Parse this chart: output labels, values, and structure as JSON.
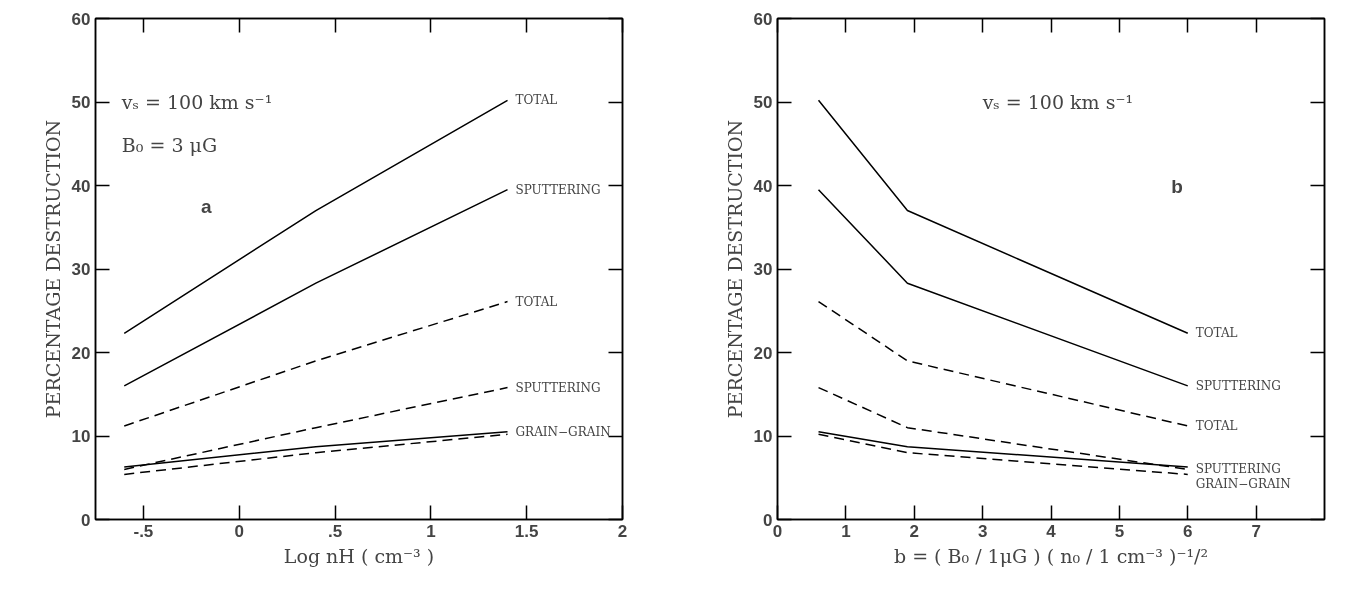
{
  "chart_data": [
    {
      "type": "line",
      "xlabel": "Log nH ( cm⁻³ )",
      "ylabel": "PERCENTAGE DESTRUCTION",
      "x": [
        -0.6,
        0.4,
        1.4
      ],
      "xlim": [
        -0.75,
        2
      ],
      "ylim": [
        0,
        60
      ],
      "xticks": [
        {
          "value": -0.5,
          "label": "-.5"
        },
        0,
        {
          "value": 0.5,
          "label": ".5"
        },
        1,
        1.5,
        2
      ],
      "yticks": [
        0,
        10,
        20,
        30,
        40,
        50,
        60
      ],
      "grid": false,
      "legend": "right",
      "annotations": [
        "vₛ = 100 km s⁻¹",
        "B₀ = 3 μG",
        "a"
      ],
      "series": [
        {
          "name": "TOTAL",
          "color": "#000000",
          "line_style": "solid",
          "values": [
            22.3,
            37,
            50.2
          ]
        },
        {
          "name": "SPUTTERING",
          "color": "#000000",
          "line_style": "solid",
          "values": [
            16,
            28.3,
            39.5
          ]
        },
        {
          "name": "TOTAL",
          "color": "#000000",
          "line_style": "dashed",
          "values": [
            11.2,
            19,
            26.1
          ]
        },
        {
          "name": "SPUTTERING",
          "color": "#000000",
          "line_style": "dashed",
          "values": [
            6,
            11,
            15.8
          ]
        },
        {
          "name": "GRAIN−GRAIN",
          "color": "#000000",
          "line_style": "solid",
          "values": [
            6.3,
            8.7,
            10.5
          ]
        },
        {
          "color": "#000000",
          "line_style": "dashed",
          "values": [
            5.4,
            8,
            10.2
          ]
        }
      ]
    },
    {
      "type": "line",
      "xlabel": "b = ( B₀ / 1μG ) ( n₀ / 1 cm⁻³ )⁻¹/²",
      "ylabel": "PERCENTAGE DESTRUCTION",
      "x": [
        0.6,
        1.9,
        6.0
      ],
      "xlim": [
        0,
        8
      ],
      "ylim": [
        0,
        60
      ],
      "xticks": [
        0,
        1,
        2,
        3,
        4,
        5,
        6,
        7
      ],
      "yticks": [
        0,
        10,
        20,
        30,
        40,
        50,
        60
      ],
      "grid": false,
      "legend": "right",
      "annotations": [
        "vₛ = 100 km s⁻¹",
        "b"
      ],
      "series": [
        {
          "name": "TOTAL",
          "color": "#000000",
          "line_style": "solid",
          "values": [
            50.2,
            37,
            22.3
          ]
        },
        {
          "name": "SPUTTERING",
          "color": "#000000",
          "line_style": "solid",
          "values": [
            39.5,
            28.3,
            16
          ]
        },
        {
          "name": "TOTAL",
          "color": "#000000",
          "line_style": "dashed",
          "values": [
            26.1,
            19,
            11.2
          ]
        },
        {
          "name": "SPUTTERING",
          "color": "#000000",
          "line_style": "dashed",
          "values": [
            15.8,
            11,
            6
          ]
        },
        {
          "name": "GRAIN−GRAIN",
          "color": "#000000",
          "line_style": "solid",
          "values": [
            10.5,
            8.7,
            6.3
          ]
        },
        {
          "color": "#000000",
          "line_style": "dashed",
          "values": [
            10.2,
            8,
            5.4
          ]
        }
      ]
    }
  ]
}
